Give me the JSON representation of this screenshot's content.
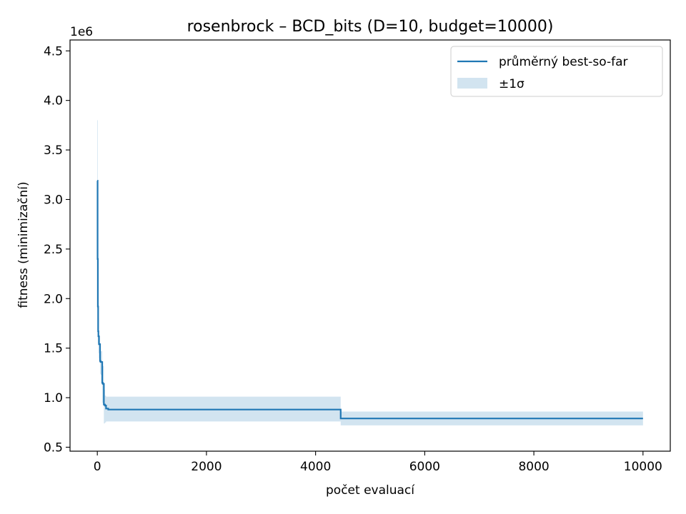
{
  "chart_data": {
    "type": "line",
    "title": "rosenbrock – BCD_bits (D=10, budget=10000)",
    "xlabel": "počet evaluací",
    "ylabel": "fitness (minimizační)",
    "y_scale_label": "1e6",
    "xlim": [
      -500,
      10500
    ],
    "ylim": [
      0.46,
      4.61
    ],
    "x_ticks": [
      0,
      2000,
      4000,
      6000,
      8000,
      10000
    ],
    "x_tick_labels": [
      "0",
      "2000",
      "4000",
      "6000",
      "8000",
      "10000"
    ],
    "y_ticks": [
      0.5,
      1.0,
      1.5,
      2.0,
      2.5,
      3.0,
      3.5,
      4.0,
      4.5
    ],
    "y_tick_labels": [
      "0.5",
      "1.0",
      "1.5",
      "2.0",
      "2.5",
      "3.0",
      "3.5",
      "4.0",
      "4.5"
    ],
    "grid": false,
    "legend_position": "top-right",
    "series": [
      {
        "name": "průměrný best-so-far",
        "color": "#1f77b4",
        "step": true,
        "x": [
          0,
          5,
          10,
          15,
          20,
          30,
          50,
          60,
          90,
          100,
          120,
          140,
          160,
          200,
          4450,
          4460,
          10000
        ],
        "y": [
          3.19,
          2.4,
          1.92,
          1.67,
          1.62,
          1.54,
          1.37,
          1.36,
          1.15,
          1.14,
          0.93,
          0.92,
          0.89,
          0.88,
          0.88,
          0.79,
          0.79
        ]
      }
    ],
    "band": {
      "name": "±1σ",
      "color": "#1f77b4",
      "opacity": 0.2,
      "step": true,
      "x": [
        0,
        10,
        20,
        30,
        50,
        60,
        90,
        100,
        120,
        140,
        160,
        200,
        4450,
        4460,
        10000
      ],
      "lower": [
        2.6,
        1.55,
        1.45,
        1.4,
        1.24,
        1.23,
        0.95,
        0.94,
        0.74,
        0.75,
        0.76,
        0.76,
        0.76,
        0.72,
        0.72
      ],
      "upper": [
        3.8,
        2.3,
        1.8,
        1.62,
        1.48,
        1.47,
        1.33,
        1.32,
        1.08,
        1.02,
        1.01,
        1.01,
        1.01,
        0.86,
        0.86
      ]
    }
  }
}
